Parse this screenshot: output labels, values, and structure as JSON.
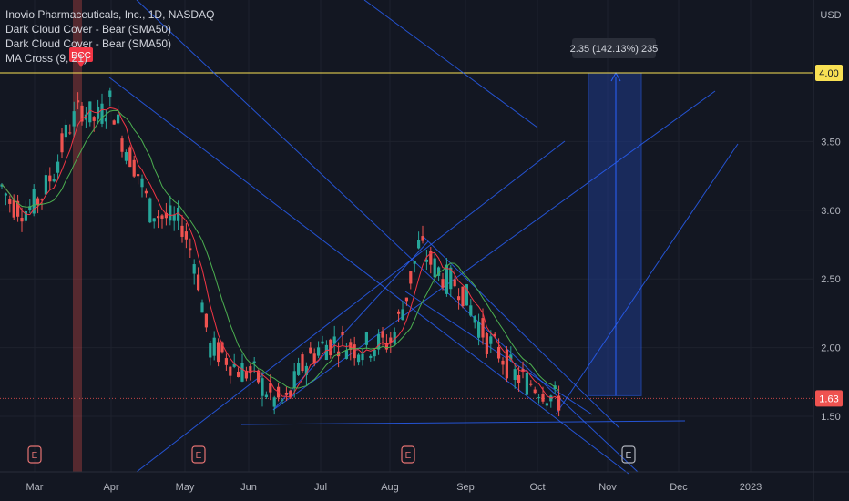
{
  "legend": {
    "title": "Inovio Pharmaceuticals, Inc., 1D, NASDAQ",
    "ind1": "Dark Cloud Cover - Bear (SMA50)",
    "ind2": "Dark Cloud Cover - Bear (SMA50)",
    "ind3": "MA Cross (9, 21)"
  },
  "currency": "USD",
  "dcc_label": "DCC",
  "earnings_label": "E",
  "measure_label": "2.35 (142.13%) 235",
  "price_tags": {
    "target": "4.00",
    "last": "1.63"
  },
  "colors": {
    "background": "#131722",
    "up": "#26a69a",
    "down": "#ef5350",
    "trendline": "#2962ff",
    "ma_fast": "#f23645",
    "ma_slow": "#4caf50",
    "target_line": "#f9e154",
    "measure_box": "#1e3a8a"
  },
  "chart_data": {
    "type": "candlestick",
    "title": "Inovio Pharmaceuticals, Inc., 1D, NASDAQ",
    "y_axis": {
      "ticks": [
        1.5,
        2.0,
        2.5,
        3.0,
        3.5,
        4.0
      ],
      "tick_labels": [
        "1.50",
        "2.00",
        "2.50",
        "3.00",
        "3.50",
        "4.00"
      ],
      "range": [
        1.2,
        4.5
      ],
      "unit": "USD"
    },
    "x_axis": {
      "tick_labels": [
        "Mar",
        "Apr",
        "May",
        "Jun",
        "Jul",
        "Aug",
        "Sep",
        "Oct",
        "Nov",
        "Dec",
        "2023"
      ]
    },
    "horizontal_lines": [
      {
        "value": 4.0,
        "label": "4.00"
      },
      {
        "value": 1.63,
        "label": "1.63"
      }
    ],
    "measure": {
      "from": 1.65,
      "to": 4.0,
      "label": "2.35 (142.13%) 235"
    },
    "approx_close_path": [
      {
        "x": "Mar",
        "y": 3.2
      },
      {
        "x": "Mar",
        "y": 3.0
      },
      {
        "x": "Mar",
        "y": 3.3
      },
      {
        "x": "Apr",
        "y": 3.9
      },
      {
        "x": "Apr",
        "y": 3.55
      },
      {
        "x": "Apr",
        "y": 3.3
      },
      {
        "x": "May",
        "y": 2.9
      },
      {
        "x": "May",
        "y": 2.55
      },
      {
        "x": "May",
        "y": 1.95
      },
      {
        "x": "Jun",
        "y": 1.8
      },
      {
        "x": "Jun",
        "y": 1.6
      },
      {
        "x": "Jun",
        "y": 1.75
      },
      {
        "x": "Jul",
        "y": 1.95
      },
      {
        "x": "Jul",
        "y": 2.05
      },
      {
        "x": "Jul",
        "y": 2.0
      },
      {
        "x": "Aug",
        "y": 2.3
      },
      {
        "x": "Aug",
        "y": 2.75
      },
      {
        "x": "Aug",
        "y": 2.5
      },
      {
        "x": "Sep",
        "y": 2.35
      },
      {
        "x": "Sep",
        "y": 2.0
      },
      {
        "x": "Sep",
        "y": 1.8
      },
      {
        "x": "Oct",
        "y": 1.7
      },
      {
        "x": "Oct",
        "y": 1.63
      }
    ]
  }
}
